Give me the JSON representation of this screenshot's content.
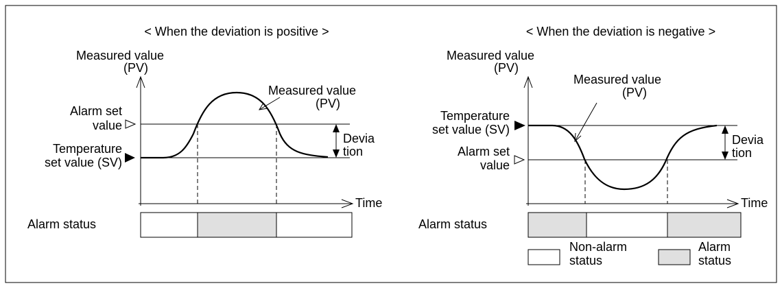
{
  "panels": [
    {
      "title": "< When the deviation is positive >",
      "y_axis_label": [
        "Measured value",
        "(PV)"
      ],
      "x_axis_label": "Time",
      "alarm_label": [
        "Alarm set",
        "value"
      ],
      "sv_label": [
        "Temperature",
        "set value (SV)"
      ],
      "curve_label": [
        "Measured value",
        "(PV)"
      ],
      "deviation_label": [
        "Devia",
        "tion"
      ],
      "status_label": "Alarm status"
    },
    {
      "title": "< When the deviation is negative >",
      "y_axis_label": [
        "Measured value",
        "(PV)"
      ],
      "x_axis_label": "Time",
      "alarm_label": [
        "Alarm set",
        "value"
      ],
      "sv_label": [
        "Temperature",
        "set value (SV)"
      ],
      "curve_label": [
        "Measured value",
        "(PV)"
      ],
      "deviation_label": [
        "Devia",
        "tion"
      ],
      "status_label": "Alarm status"
    }
  ],
  "legend": [
    {
      "label": [
        "Non-alarm",
        "status"
      ]
    },
    {
      "label": [
        "Alarm",
        "status"
      ]
    }
  ]
}
